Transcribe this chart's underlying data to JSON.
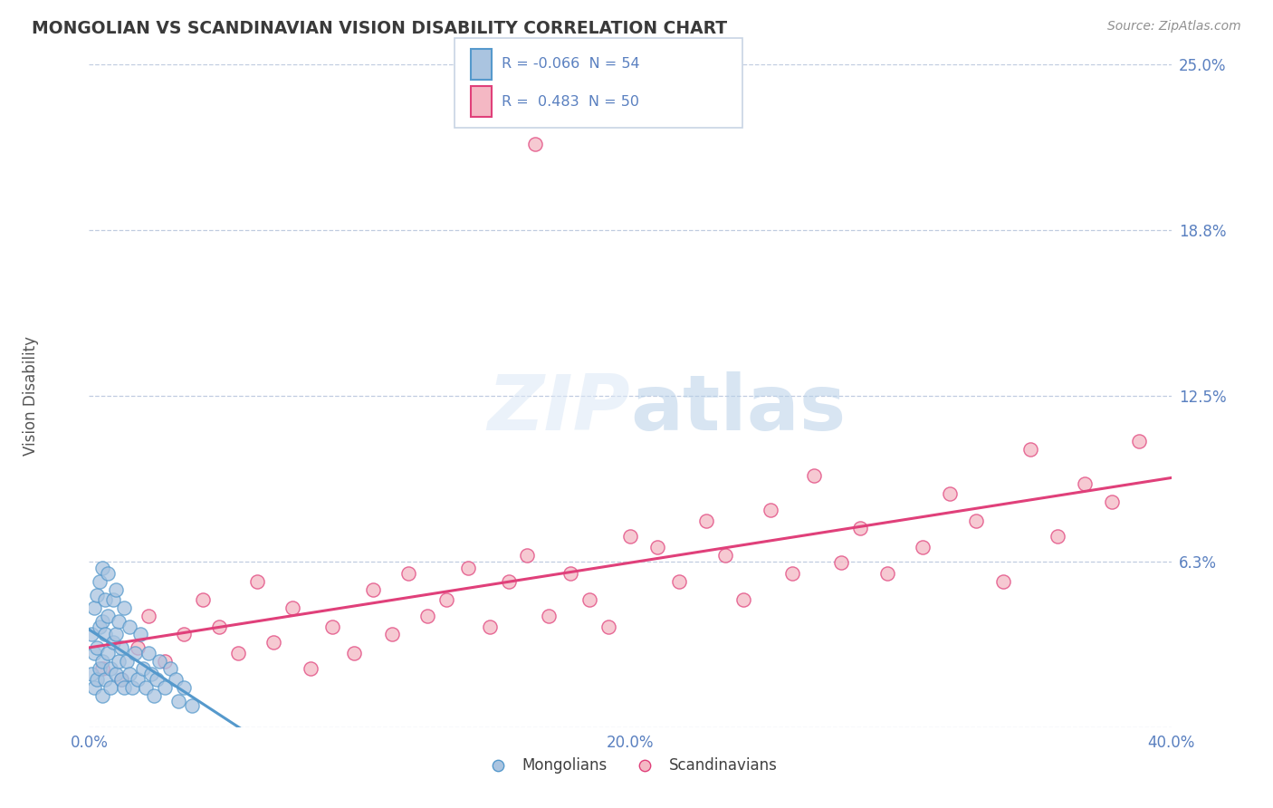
{
  "title": "MONGOLIAN VS SCANDINAVIAN VISION DISABILITY CORRELATION CHART",
  "source": "Source: ZipAtlas.com",
  "ylabel": "Vision Disability",
  "xlabel": "",
  "xlim": [
    0.0,
    0.4
  ],
  "ylim": [
    0.0,
    0.25
  ],
  "yticks": [
    0.0,
    0.0625,
    0.125,
    0.1875,
    0.25
  ],
  "ytick_labels": [
    "",
    "6.3%",
    "12.5%",
    "18.8%",
    "25.0%"
  ],
  "xticks": [
    0.0,
    0.1,
    0.2,
    0.3,
    0.4
  ],
  "xtick_labels": [
    "0.0%",
    "",
    "20.0%",
    "",
    "40.0%"
  ],
  "mongolian_color": "#aac4e0",
  "scandinavian_color": "#f4b8c4",
  "mongolian_line_color": "#5599cc",
  "scandinavian_line_color": "#e0407a",
  "dashed_line_color": "#b8c8de",
  "watermark": "ZIPatlas",
  "title_color": "#3a3a3a",
  "tick_color": "#5a80c0",
  "mongolian_x": [
    0.001,
    0.001,
    0.002,
    0.002,
    0.002,
    0.003,
    0.003,
    0.003,
    0.004,
    0.004,
    0.004,
    0.005,
    0.005,
    0.005,
    0.005,
    0.006,
    0.006,
    0.006,
    0.007,
    0.007,
    0.007,
    0.008,
    0.008,
    0.009,
    0.009,
    0.01,
    0.01,
    0.01,
    0.011,
    0.011,
    0.012,
    0.012,
    0.013,
    0.013,
    0.014,
    0.015,
    0.015,
    0.016,
    0.017,
    0.018,
    0.019,
    0.02,
    0.021,
    0.022,
    0.023,
    0.024,
    0.025,
    0.026,
    0.028,
    0.03,
    0.032,
    0.033,
    0.035,
    0.038
  ],
  "mongolian_y": [
    0.02,
    0.035,
    0.015,
    0.028,
    0.045,
    0.018,
    0.03,
    0.05,
    0.022,
    0.038,
    0.055,
    0.025,
    0.04,
    0.06,
    0.012,
    0.035,
    0.048,
    0.018,
    0.028,
    0.042,
    0.058,
    0.022,
    0.015,
    0.032,
    0.048,
    0.02,
    0.035,
    0.052,
    0.025,
    0.04,
    0.018,
    0.03,
    0.015,
    0.045,
    0.025,
    0.02,
    0.038,
    0.015,
    0.028,
    0.018,
    0.035,
    0.022,
    0.015,
    0.028,
    0.02,
    0.012,
    0.018,
    0.025,
    0.015,
    0.022,
    0.018,
    0.01,
    0.015,
    0.008
  ],
  "scandinavian_x": [
    0.005,
    0.012,
    0.018,
    0.022,
    0.028,
    0.035,
    0.042,
    0.048,
    0.055,
    0.062,
    0.068,
    0.075,
    0.082,
    0.09,
    0.098,
    0.105,
    0.112,
    0.118,
    0.125,
    0.132,
    0.14,
    0.148,
    0.155,
    0.162,
    0.17,
    0.178,
    0.185,
    0.192,
    0.2,
    0.21,
    0.218,
    0.228,
    0.235,
    0.242,
    0.252,
    0.26,
    0.268,
    0.278,
    0.285,
    0.295,
    0.308,
    0.318,
    0.328,
    0.338,
    0.348,
    0.358,
    0.368,
    0.378,
    0.388,
    0.165
  ],
  "scandinavian_y": [
    0.022,
    0.018,
    0.03,
    0.042,
    0.025,
    0.035,
    0.048,
    0.038,
    0.028,
    0.055,
    0.032,
    0.045,
    0.022,
    0.038,
    0.028,
    0.052,
    0.035,
    0.058,
    0.042,
    0.048,
    0.06,
    0.038,
    0.055,
    0.065,
    0.042,
    0.058,
    0.048,
    0.038,
    0.072,
    0.068,
    0.055,
    0.078,
    0.065,
    0.048,
    0.082,
    0.058,
    0.095,
    0.062,
    0.075,
    0.058,
    0.068,
    0.088,
    0.078,
    0.055,
    0.105,
    0.072,
    0.092,
    0.085,
    0.108,
    0.22
  ]
}
